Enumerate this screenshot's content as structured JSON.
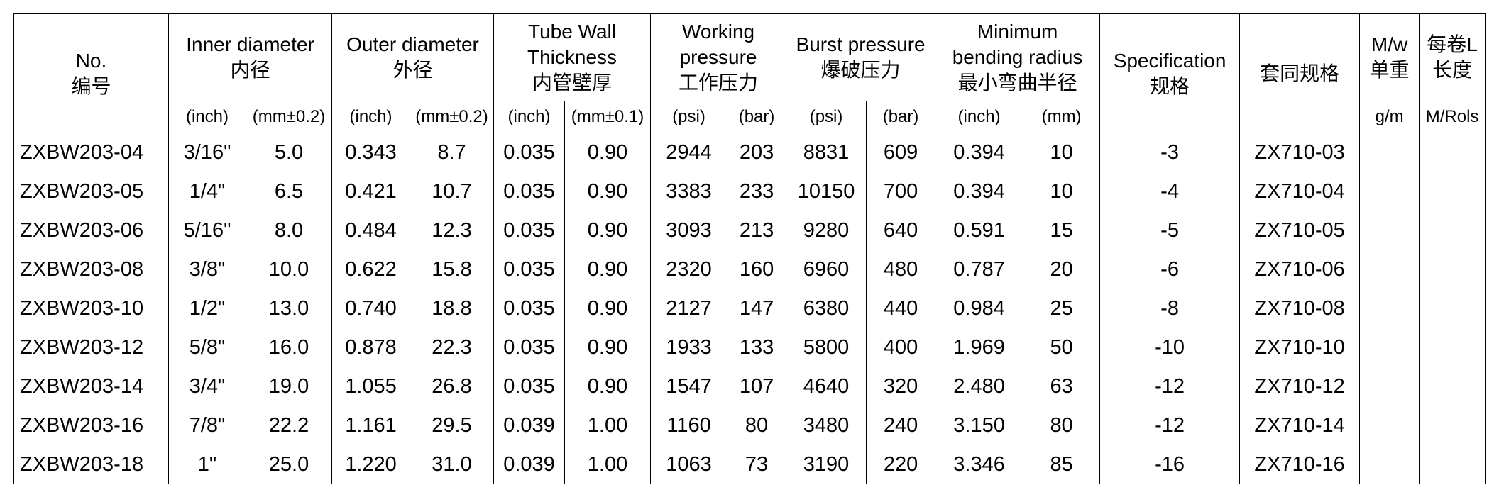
{
  "table": {
    "header": [
      "No.\n编号",
      "Inner diameter\n内径",
      "Outer diameter\n外径",
      "Tube Wall\nThickness\n内管壁厚",
      "Working\npressure\n工作压力",
      "Burst pressure\n爆破压力",
      "Minimum\nbending radius\n最小弯曲半径",
      "Specification\n规格",
      "套同规格",
      "M/w\n单重",
      "每卷L\n长度"
    ],
    "units": [
      "(inch)",
      "(mm±0.2)",
      "(inch)",
      "(mm±0.2)",
      "(inch)",
      "(mm±0.1)",
      "(psi)",
      "(bar)",
      "(psi)",
      "(bar)",
      "(inch)",
      "(mm)",
      "g/m",
      "M/Rols"
    ],
    "rows": [
      [
        "ZXBW203-04",
        "3/16\"",
        "5.0",
        "0.343",
        "8.7",
        "0.035",
        "0.90",
        "2944",
        "203",
        "8831",
        "609",
        "0.394",
        "10",
        "-3",
        "ZX710-03"
      ],
      [
        "ZXBW203-05",
        "1/4\"",
        "6.5",
        "0.421",
        "10.7",
        "0.035",
        "0.90",
        "3383",
        "233",
        "10150",
        "700",
        "0.394",
        "10",
        "-4",
        "ZX710-04"
      ],
      [
        "ZXBW203-06",
        "5/16\"",
        "8.0",
        "0.484",
        "12.3",
        "0.035",
        "0.90",
        "3093",
        "213",
        "9280",
        "640",
        "0.591",
        "15",
        "-5",
        "ZX710-05"
      ],
      [
        "ZXBW203-08",
        "3/8\"",
        "10.0",
        "0.622",
        "15.8",
        "0.035",
        "0.90",
        "2320",
        "160",
        "6960",
        "480",
        "0.787",
        "20",
        "-6",
        "ZX710-06"
      ],
      [
        "ZXBW203-10",
        "1/2\"",
        "13.0",
        "0.740",
        "18.8",
        "0.035",
        "0.90",
        "2127",
        "147",
        "6380",
        "440",
        "0.984",
        "25",
        "-8",
        "ZX710-08"
      ],
      [
        "ZXBW203-12",
        "5/8\"",
        "16.0",
        "0.878",
        "22.3",
        "0.035",
        "0.90",
        "1933",
        "133",
        "5800",
        "400",
        "1.969",
        "50",
        "-10",
        "ZX710-10"
      ],
      [
        "ZXBW203-14",
        "3/4\"",
        "19.0",
        "1.055",
        "26.8",
        "0.035",
        "0.90",
        "1547",
        "107",
        "4640",
        "320",
        "2.480",
        "63",
        "-12",
        "ZX710-12"
      ],
      [
        "ZXBW203-16",
        "7/8\"",
        "22.2",
        "1.161",
        "29.5",
        "0.039",
        "1.00",
        "1160",
        "80",
        "3480",
        "240",
        "3.150",
        "80",
        "-12",
        "ZX710-14"
      ],
      [
        "ZXBW203-18",
        "1\"",
        "25.0",
        "1.220",
        "31.0",
        "0.039",
        "1.00",
        "1063",
        "73",
        "3190",
        "220",
        "3.346",
        "85",
        "-16",
        "ZX710-16"
      ]
    ]
  }
}
